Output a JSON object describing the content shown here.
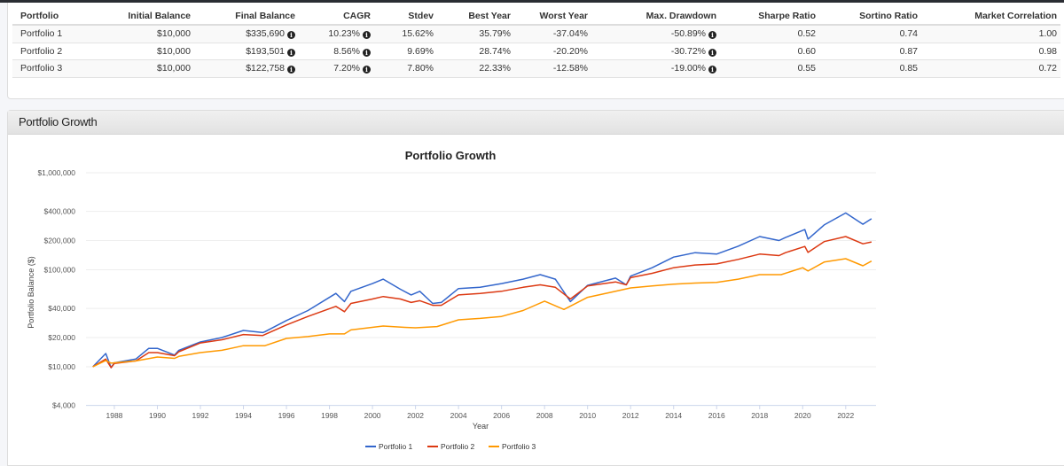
{
  "table": {
    "headers": [
      "Portfolio",
      "Initial Balance",
      "Final Balance",
      "CAGR",
      "Stdev",
      "Best Year",
      "Worst Year",
      "Max. Drawdown",
      "Sharpe Ratio",
      "Sortino Ratio",
      "Market Correlation"
    ],
    "rows": [
      [
        "Portfolio 1",
        "$10,000",
        "$335,690",
        "10.23%",
        "15.62%",
        "35.79%",
        "-37.04%",
        "-50.89%",
        "0.52",
        "0.74",
        "1.00"
      ],
      [
        "Portfolio 2",
        "$10,000",
        "$193,501",
        "8.56%",
        "9.69%",
        "28.74%",
        "-20.20%",
        "-30.72%",
        "0.60",
        "0.87",
        "0.98"
      ],
      [
        "Portfolio 3",
        "$10,000",
        "$122,758",
        "7.20%",
        "7.80%",
        "22.33%",
        "-12.58%",
        "-19.00%",
        "0.55",
        "0.85",
        "0.72"
      ]
    ],
    "info_icon_columns": [
      2,
      3,
      7
    ]
  },
  "panel": {
    "title": "Portfolio Growth"
  },
  "chart_data": {
    "type": "line",
    "title": "Portfolio Growth",
    "xlabel": "Year",
    "ylabel": "Portfolio Balance ($)",
    "yscale": "log",
    "ylim": [
      4000,
      1000000
    ],
    "xlim": [
      1987,
      2023.4
    ],
    "yticks": [
      4000,
      10000,
      20000,
      40000,
      100000,
      200000,
      400000,
      1000000
    ],
    "ytick_labels": [
      "$4,000",
      "$10,000",
      "$20,000",
      "$40,000",
      "$100,000",
      "$200,000",
      "$400,000",
      "$1,000,000"
    ],
    "xticks": [
      1988,
      1990,
      1992,
      1994,
      1996,
      1998,
      2000,
      2002,
      2004,
      2006,
      2008,
      2010,
      2012,
      2014,
      2016,
      2018,
      2020,
      2022
    ],
    "grid": true,
    "legend": "bottom",
    "series": [
      {
        "name": "Portfolio 1",
        "color": "#3366cc",
        "points": [
          [
            1987.0,
            10000
          ],
          [
            1987.6,
            13700
          ],
          [
            1987.85,
            9800
          ],
          [
            1988,
            11000
          ],
          [
            1989,
            12000
          ],
          [
            1989.6,
            15500
          ],
          [
            1990,
            15500
          ],
          [
            1990.8,
            13200
          ],
          [
            1991,
            14800
          ],
          [
            1992,
            18000
          ],
          [
            1993,
            20000
          ],
          [
            1994,
            23700
          ],
          [
            1994.9,
            22500
          ],
          [
            1995,
            23000
          ],
          [
            1996,
            30000
          ],
          [
            1997,
            38000
          ],
          [
            1998.3,
            57000
          ],
          [
            1998.7,
            47000
          ],
          [
            1999,
            60000
          ],
          [
            2000,
            72000
          ],
          [
            2000.5,
            80000
          ],
          [
            2001.3,
            63000
          ],
          [
            2001.8,
            55000
          ],
          [
            2002.2,
            60000
          ],
          [
            2002.8,
            45000
          ],
          [
            2003.2,
            46000
          ],
          [
            2004,
            64000
          ],
          [
            2005,
            66000
          ],
          [
            2006,
            72000
          ],
          [
            2007,
            80000
          ],
          [
            2007.8,
            89000
          ],
          [
            2008.5,
            80000
          ],
          [
            2009.2,
            47000
          ],
          [
            2010,
            69000
          ],
          [
            2011.3,
            82000
          ],
          [
            2011.8,
            70000
          ],
          [
            2012,
            86000
          ],
          [
            2013,
            105000
          ],
          [
            2014,
            135000
          ],
          [
            2015,
            150000
          ],
          [
            2016,
            145000
          ],
          [
            2017,
            175000
          ],
          [
            2018,
            220000
          ],
          [
            2018.9,
            200000
          ],
          [
            2019.2,
            215000
          ],
          [
            2020.1,
            260000
          ],
          [
            2020.25,
            207000
          ],
          [
            2021,
            290000
          ],
          [
            2022,
            385000
          ],
          [
            2022.8,
            295000
          ],
          [
            2023.2,
            335690
          ]
        ]
      },
      {
        "name": "Portfolio 2",
        "color": "#dc3912",
        "points": [
          [
            1987.0,
            10000
          ],
          [
            1987.6,
            12000
          ],
          [
            1987.85,
            9800
          ],
          [
            1988,
            10800
          ],
          [
            1989,
            11500
          ],
          [
            1989.6,
            14000
          ],
          [
            1990,
            14000
          ],
          [
            1990.8,
            13000
          ],
          [
            1991,
            14300
          ],
          [
            1992,
            17600
          ],
          [
            1993,
            19000
          ],
          [
            1994,
            21500
          ],
          [
            1994.9,
            21000
          ],
          [
            1995,
            21500
          ],
          [
            1996,
            27000
          ],
          [
            1997,
            33000
          ],
          [
            1998.3,
            42000
          ],
          [
            1998.7,
            37000
          ],
          [
            1999,
            45000
          ],
          [
            2000,
            50000
          ],
          [
            2000.5,
            53000
          ],
          [
            2001.3,
            50000
          ],
          [
            2001.8,
            46000
          ],
          [
            2002.2,
            48000
          ],
          [
            2002.8,
            43000
          ],
          [
            2003.2,
            43000
          ],
          [
            2004,
            55000
          ],
          [
            2005,
            57000
          ],
          [
            2006,
            60000
          ],
          [
            2007,
            66000
          ],
          [
            2007.8,
            70000
          ],
          [
            2008.5,
            66000
          ],
          [
            2009.2,
            50000
          ],
          [
            2010,
            68000
          ],
          [
            2011.3,
            75000
          ],
          [
            2011.8,
            70000
          ],
          [
            2012,
            83000
          ],
          [
            2013,
            92000
          ],
          [
            2014,
            105000
          ],
          [
            2015,
            112000
          ],
          [
            2016,
            115000
          ],
          [
            2017,
            128000
          ],
          [
            2018,
            145000
          ],
          [
            2018.9,
            140000
          ],
          [
            2019.2,
            150000
          ],
          [
            2020.1,
            174000
          ],
          [
            2020.25,
            151000
          ],
          [
            2021,
            195000
          ],
          [
            2022,
            220000
          ],
          [
            2022.8,
            185000
          ],
          [
            2023.2,
            193501
          ]
        ]
      },
      {
        "name": "Portfolio 3",
        "color": "#ff9900",
        "points": [
          [
            1987.0,
            10000
          ],
          [
            1987.6,
            11600
          ],
          [
            1987.85,
            10900
          ],
          [
            1988,
            11000
          ],
          [
            1989,
            11500
          ],
          [
            1990,
            12600
          ],
          [
            1990.8,
            12200
          ],
          [
            1991,
            12800
          ],
          [
            1992,
            14000
          ],
          [
            1993,
            14800
          ],
          [
            1994,
            16500
          ],
          [
            1995,
            16500
          ],
          [
            1996,
            19600
          ],
          [
            1997,
            20500
          ],
          [
            1998,
            21800
          ],
          [
            1998.7,
            21800
          ],
          [
            1999,
            24000
          ],
          [
            2000.5,
            26300
          ],
          [
            2001.5,
            25500
          ],
          [
            2002,
            25200
          ],
          [
            2003,
            26000
          ],
          [
            2004,
            30500
          ],
          [
            2005,
            31500
          ],
          [
            2006,
            33000
          ],
          [
            2007,
            38000
          ],
          [
            2008,
            47500
          ],
          [
            2008.9,
            39000
          ],
          [
            2010,
            52000
          ],
          [
            2011,
            58000
          ],
          [
            2012,
            65000
          ],
          [
            2013,
            68000
          ],
          [
            2014,
            71000
          ],
          [
            2015,
            73000
          ],
          [
            2016,
            74000
          ],
          [
            2017,
            80000
          ],
          [
            2018,
            89000
          ],
          [
            2019,
            89000
          ],
          [
            2020,
            105000
          ],
          [
            2020.25,
            97000
          ],
          [
            2021,
            120000
          ],
          [
            2022,
            130000
          ],
          [
            2022.8,
            110000
          ],
          [
            2023.2,
            122758
          ]
        ]
      }
    ]
  }
}
